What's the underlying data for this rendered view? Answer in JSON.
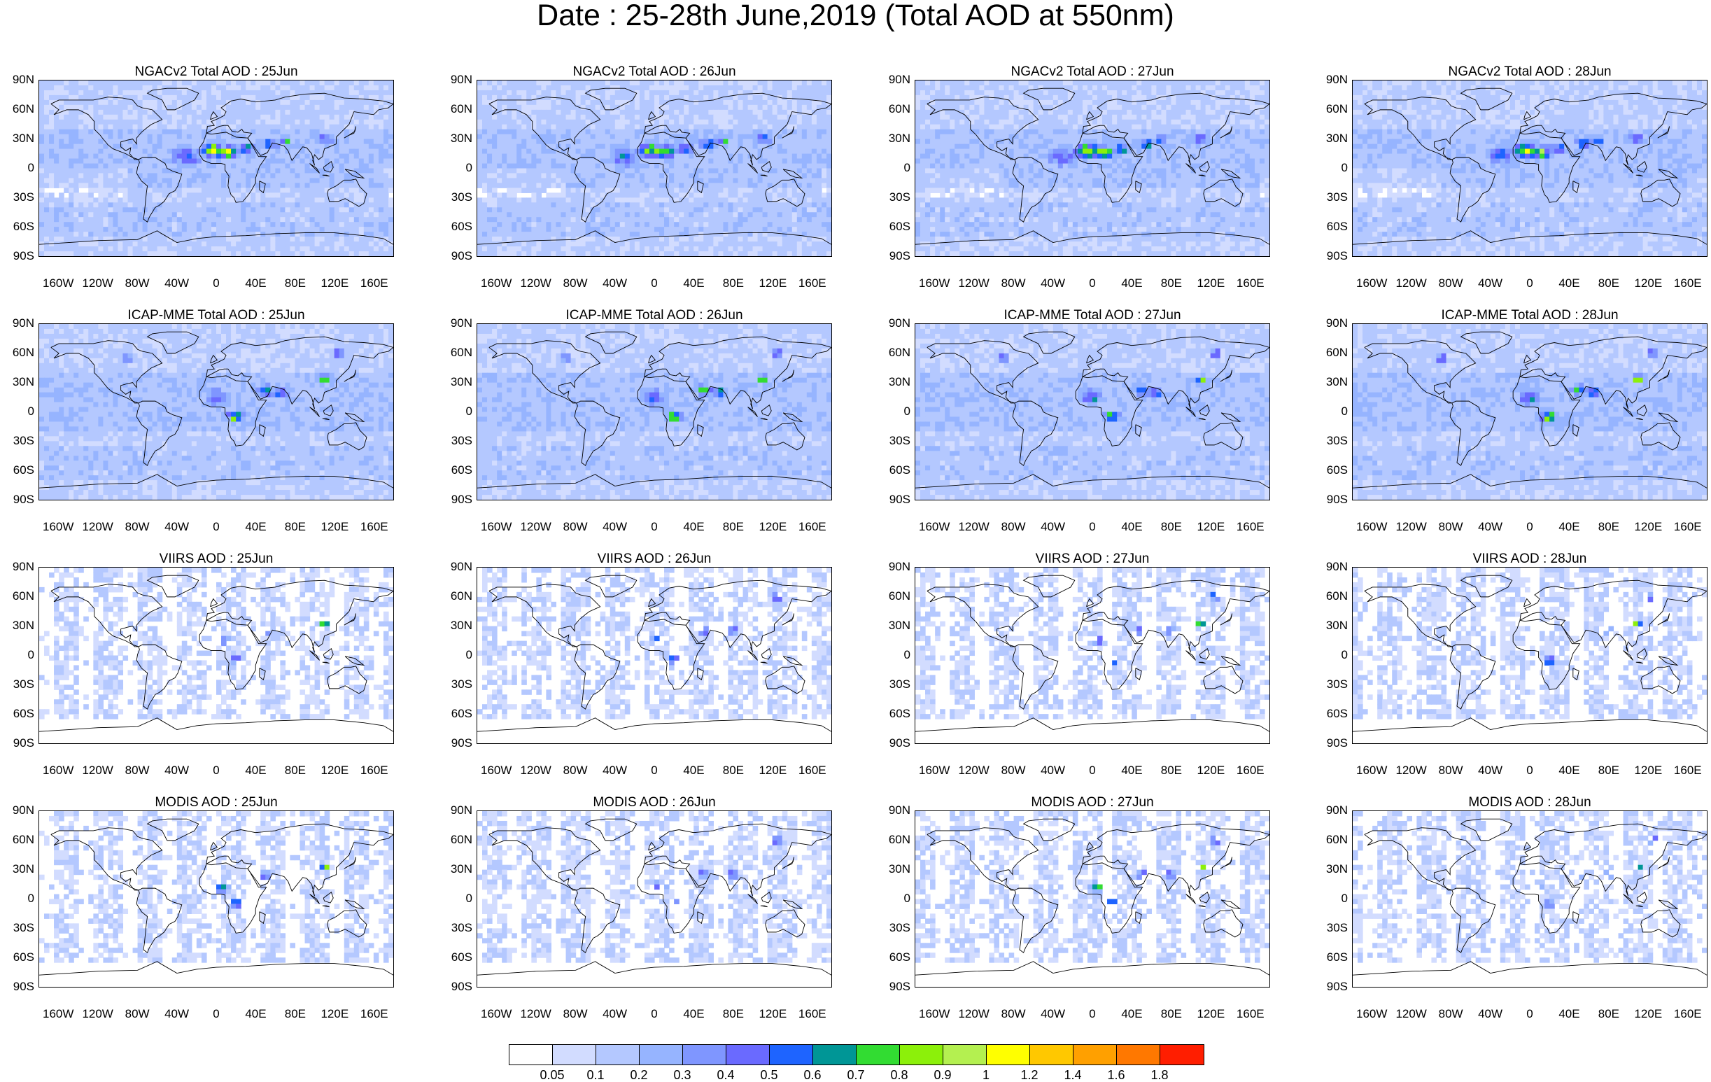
{
  "title": "Date : 25-28th June,2019 (Total AOD at 550nm)",
  "panels": [
    {
      "title": "NGACv2 Total AOD : 25Jun"
    },
    {
      "title": "NGACv2 Total AOD : 26Jun"
    },
    {
      "title": "NGACv2 Total AOD : 27Jun"
    },
    {
      "title": "NGACv2 Total AOD : 28Jun"
    },
    {
      "title": "ICAP-MME Total AOD : 25Jun"
    },
    {
      "title": "ICAP-MME Total AOD : 26Jun"
    },
    {
      "title": "ICAP-MME Total AOD : 27Jun"
    },
    {
      "title": "ICAP-MME Total AOD : 28Jun"
    },
    {
      "title": "VIIRS AOD : 25Jun"
    },
    {
      "title": "VIIRS AOD : 26Jun"
    },
    {
      "title": "VIIRS AOD : 27Jun"
    },
    {
      "title": "VIIRS AOD : 28Jun"
    },
    {
      "title": "MODIS AOD : 25Jun"
    },
    {
      "title": "MODIS AOD : 26Jun"
    },
    {
      "title": "MODIS AOD : 27Jun"
    },
    {
      "title": "MODIS AOD : 28Jun"
    }
  ],
  "lat_labels": [
    "90N",
    "60N",
    "30N",
    "0",
    "30S",
    "60S",
    "90S"
  ],
  "lon_labels": [
    "160W",
    "120W",
    "80W",
    "40W",
    "0",
    "40E",
    "80E",
    "120E",
    "160E"
  ],
  "colorbar": {
    "labels": [
      "0.05",
      "0.1",
      "0.2",
      "0.3",
      "0.4",
      "0.5",
      "0.6",
      "0.7",
      "0.8",
      "0.9",
      "1",
      "1.2",
      "1.4",
      "1.6",
      "1.8"
    ],
    "colors": [
      "#ffffff",
      "#d2dcff",
      "#b4c8ff",
      "#96b4ff",
      "#7f96ff",
      "#6a6aff",
      "#1e64ff",
      "#009696",
      "#32dc32",
      "#8cf00a",
      "#b4f050",
      "#ffff00",
      "#ffc800",
      "#ffa000",
      "#ff7800",
      "#ff1e00"
    ]
  }
}
